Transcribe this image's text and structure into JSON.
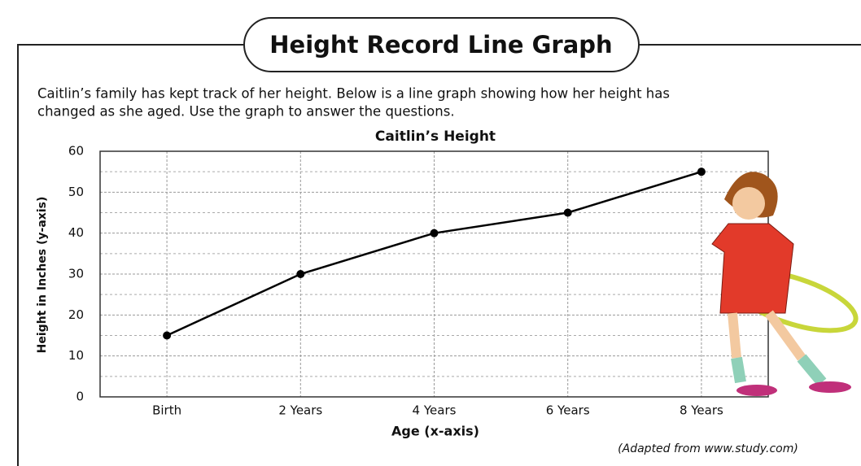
{
  "header": {
    "title": "Height Record Line Graph",
    "description": [
      "Caitlin’s family has kept track of her height.  Below is a line graph showing how her height has",
      "changed as she aged.  Use the graph to answer the questions."
    ],
    "credit": "(Adapted from www.study.com)"
  },
  "chart_data": {
    "type": "line",
    "title": "Caitlin’s Height",
    "x_label": "Age (x-axis)",
    "y_label": "Height in Inches (y-axis)",
    "categories": [
      "Birth",
      "2 Years",
      "4 Years",
      "6 Years",
      "8 Years"
    ],
    "values": [
      15,
      30,
      40,
      45,
      55
    ],
    "color": "#000000",
    "ylim": [
      0,
      60
    ],
    "yticks": [
      0,
      10,
      20,
      30,
      40,
      50,
      60
    ],
    "minor_yticks": [
      5,
      15,
      25,
      35,
      45,
      55
    ],
    "grid": true
  }
}
